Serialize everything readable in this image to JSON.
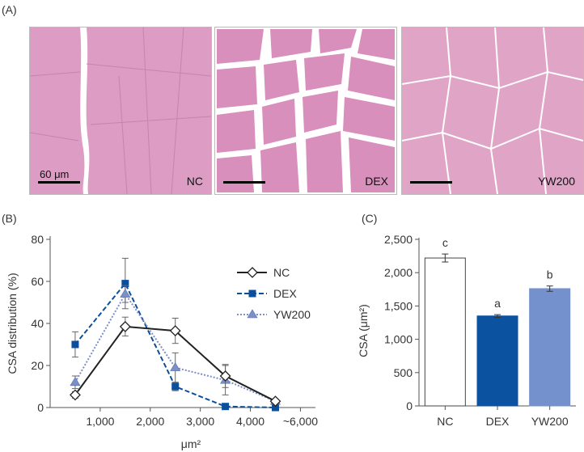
{
  "panels": {
    "a": "(A)",
    "b": "(B)",
    "c": "(C)"
  },
  "micrographs": [
    {
      "group": "NC",
      "scale": "60 μm",
      "fill": "#dc9cc3"
    },
    {
      "group": "DEX",
      "scale": "",
      "fill": "#d88fbb"
    },
    {
      "group": "YW200",
      "scale": "",
      "fill": "#e0a4c7"
    }
  ],
  "chart_data": [
    {
      "type": "line",
      "xlabel": "μm²",
      "ylabel": "CSA distribution (%)",
      "x": [
        500,
        1500,
        2500,
        3500,
        4500
      ],
      "x_ticks": [
        "1,000",
        "2,000",
        "3,000",
        "4,000",
        "~6,000"
      ],
      "x_tick_values": [
        1000,
        2000,
        3000,
        4000,
        5000
      ],
      "xlim": [
        0,
        5300
      ],
      "ylim": [
        0,
        80
      ],
      "y_ticks": [
        0,
        20,
        40,
        60,
        80
      ],
      "legend_position": "top-right",
      "series": [
        {
          "name": "NC",
          "values": [
            6,
            38.5,
            36.5,
            15,
            3
          ],
          "errors": [
            1.5,
            4.5,
            6,
            5.5,
            0.5
          ],
          "color": "#222222",
          "dash": "",
          "marker": "diamond-open"
        },
        {
          "name": "DEX",
          "values": [
            30,
            59,
            10,
            0.5,
            0
          ],
          "errors": [
            6,
            12,
            2,
            0.5,
            0
          ],
          "color": "#0b4f9c",
          "dash": "6,3",
          "marker": "square"
        },
        {
          "name": "YW200",
          "values": [
            12,
            54,
            19,
            13,
            3
          ],
          "errors": [
            3,
            4,
            7,
            7,
            1
          ],
          "color": "#7b8fc9",
          "dash": "2,2",
          "marker": "triangle"
        }
      ]
    },
    {
      "type": "bar",
      "ylabel": "CSA (μm²)",
      "categories": [
        "NC",
        "DEX",
        "YW200"
      ],
      "values": [
        2220,
        1350,
        1760
      ],
      "errors": [
        60,
        20,
        40
      ],
      "labels": [
        "c",
        "a",
        "b"
      ],
      "colors": [
        "#ffffff",
        "#0b52a0",
        "#7490cd"
      ],
      "ylim": [
        0,
        2500
      ],
      "y_ticks": [
        "0",
        "500",
        "1,000",
        "1,500",
        "2,000",
        "2,500"
      ],
      "y_tick_values": [
        0,
        500,
        1000,
        1500,
        2000,
        2500
      ]
    }
  ]
}
